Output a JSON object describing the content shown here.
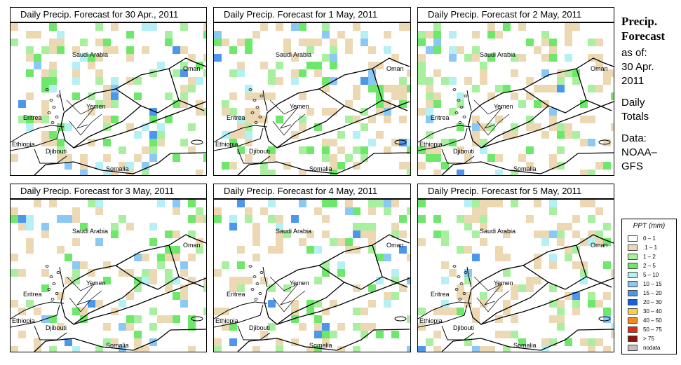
{
  "panels": [
    {
      "title": "Daily Precip. Forecast for  30 Apr., 2011"
    },
    {
      "title": "Daily Precip. Forecast for  1 May, 2011"
    },
    {
      "title": "Daily Precip. Forecast for  2 May, 2011"
    },
    {
      "title": "Daily Precip. Forecast for  3 May, 2011"
    },
    {
      "title": "Daily Precip. Forecast for  4 May, 2011"
    },
    {
      "title": "Daily Precip. Forecast for  5 May, 2011"
    }
  ],
  "map_labels": {
    "saudi_arabia": "Saudi Arabia",
    "oman": "Oman",
    "yemen": "Yemen",
    "eritrea": "Eritrea",
    "ethiopia": "Ethiopia",
    "djibouti": "Djibouti",
    "somalia": "Somalia"
  },
  "side": {
    "title_line1": "Precip.",
    "title_line2": "Forecast",
    "asof_line1": "as of:",
    "asof_line2": "30 Apr.",
    "asof_line3": "2011",
    "daily_line1": "Daily",
    "daily_line2": "Totals",
    "data_line1": "Data:",
    "data_line2": "NOAA–",
    "data_line3": "GFS"
  },
  "legend": {
    "title": "PPT (mm)",
    "items": [
      {
        "label": "0 – 1",
        "color": "#ffffff"
      },
      {
        "label": ".1 – 1",
        "color": "#ecd9b4"
      },
      {
        "label": "1 – 2",
        "color": "#a8f0a0"
      },
      {
        "label": "2 – 5",
        "color": "#6ee86a"
      },
      {
        "label": "5 – 10",
        "color": "#b4f0f4"
      },
      {
        "label": "10 – 15",
        "color": "#8cc8f4"
      },
      {
        "label": "15 – 20",
        "color": "#4c96ec"
      },
      {
        "label": "20 – 30",
        "color": "#1c5ce0"
      },
      {
        "label": "30 – 40",
        "color": "#f4d240"
      },
      {
        "label": "40 – 50",
        "color": "#f48a18"
      },
      {
        "label": "50 – 75",
        "color": "#e42a10"
      },
      {
        "label": "> 75",
        "color": "#8c1408"
      },
      {
        "label": "nodata",
        "color": "#c0c0c0"
      }
    ]
  }
}
